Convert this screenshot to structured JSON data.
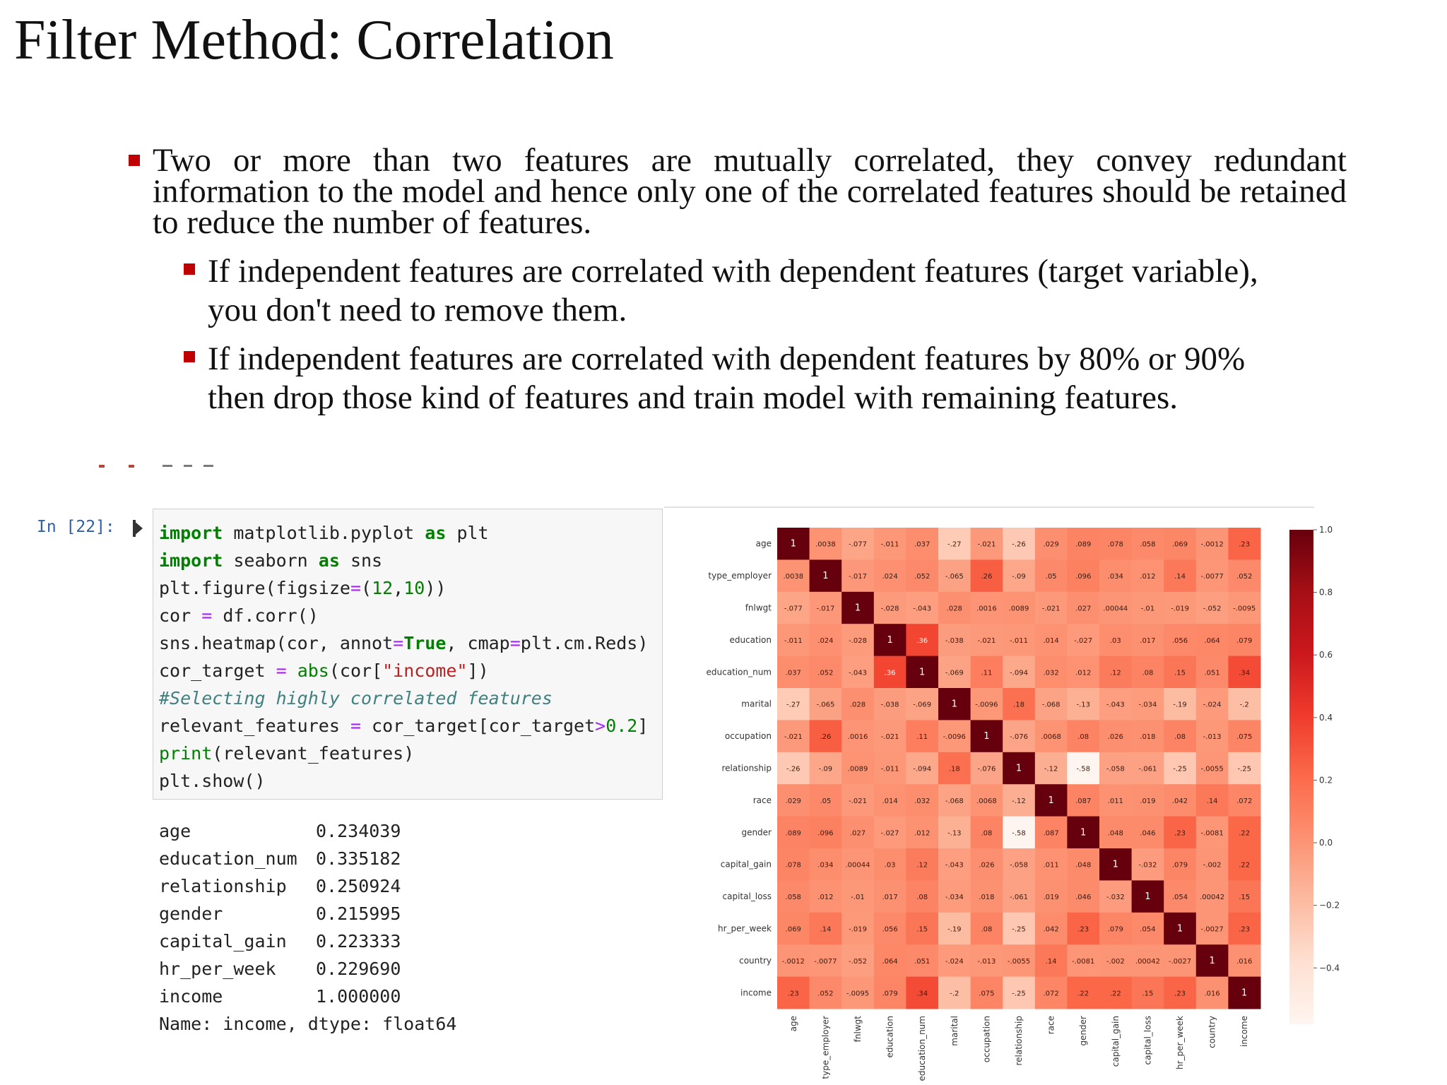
{
  "title": "Filter Method: Correlation",
  "bullets": [
    {
      "level": 1,
      "text": "Two or more than two features are mutually correlated, they convey redundant information to the model and hence only one of the correlated features should be retained to reduce the number of features."
    },
    {
      "level": 2,
      "text": "If independent features are correlated with dependent features (target variable), you don't need to remove them."
    },
    {
      "level": 2,
      "text": "If independent features are correlated with dependent features by 80% or 90% then drop those kind of features and train model with remaining features."
    }
  ],
  "notebook": {
    "prompt": "In [22]:",
    "code_lines": [
      [
        {
          "t": "import",
          "c": "kw"
        },
        {
          "t": " matplotlib.pyplot ",
          "c": ""
        },
        {
          "t": "as",
          "c": "kw"
        },
        {
          "t": " plt",
          "c": ""
        }
      ],
      [
        {
          "t": "import",
          "c": "kw"
        },
        {
          "t": " seaborn ",
          "c": ""
        },
        {
          "t": "as",
          "c": "kw"
        },
        {
          "t": " sns",
          "c": ""
        }
      ],
      [
        {
          "t": "plt.figure(figsize",
          "c": ""
        },
        {
          "t": "=",
          "c": "op"
        },
        {
          "t": "(",
          "c": ""
        },
        {
          "t": "12",
          "c": "num"
        },
        {
          "t": ",",
          "c": ""
        },
        {
          "t": "10",
          "c": "num"
        },
        {
          "t": "))",
          "c": ""
        }
      ],
      [
        {
          "t": "cor ",
          "c": ""
        },
        {
          "t": "=",
          "c": "op"
        },
        {
          "t": " df.corr()",
          "c": ""
        }
      ],
      [
        {
          "t": "sns.heatmap(cor, annot",
          "c": ""
        },
        {
          "t": "=",
          "c": "op"
        },
        {
          "t": "True",
          "c": "kw"
        },
        {
          "t": ", cmap",
          "c": ""
        },
        {
          "t": "=",
          "c": "op"
        },
        {
          "t": "plt.cm.Reds)",
          "c": ""
        }
      ],
      [
        {
          "t": "cor_target ",
          "c": ""
        },
        {
          "t": "=",
          "c": "op"
        },
        {
          "t": " ",
          "c": ""
        },
        {
          "t": "abs",
          "c": "bi"
        },
        {
          "t": "(cor[",
          "c": ""
        },
        {
          "t": "\"income\"",
          "c": "str"
        },
        {
          "t": "])",
          "c": ""
        }
      ],
      [
        {
          "t": "#Selecting highly correlated features",
          "c": "cm"
        }
      ],
      [
        {
          "t": "relevant_features ",
          "c": ""
        },
        {
          "t": "=",
          "c": "op"
        },
        {
          "t": " cor_target[cor_target",
          "c": ""
        },
        {
          "t": ">",
          "c": "op"
        },
        {
          "t": "0.2",
          "c": "num"
        },
        {
          "t": "]",
          "c": ""
        }
      ],
      [
        {
          "t": "print",
          "c": "bi"
        },
        {
          "t": "(relevant_features)",
          "c": ""
        }
      ],
      [
        {
          "t": "plt.show()",
          "c": ""
        }
      ]
    ],
    "output_rows": [
      {
        "name": "age",
        "value": "0.234039"
      },
      {
        "name": "education_num",
        "value": "0.335182"
      },
      {
        "name": "relationship",
        "value": "0.250924"
      },
      {
        "name": "gender",
        "value": "0.215995"
      },
      {
        "name": "capital_gain",
        "value": "0.223333"
      },
      {
        "name": "hr_per_week",
        "value": "0.229690"
      },
      {
        "name": "income",
        "value": "1.000000"
      }
    ],
    "output_footer": "Name: income, dtype: float64"
  },
  "chart_data": {
    "type": "heatmap",
    "labels": [
      "age",
      "type_employer",
      "fnlwgt",
      "education",
      "education_num",
      "marital",
      "occupation",
      "relationship",
      "race",
      "gender",
      "capital_gain",
      "capital_loss",
      "hr_per_week",
      "country",
      "income"
    ],
    "values": [
      [
        1,
        0.0038,
        -0.077,
        -0.011,
        0.037,
        -0.27,
        -0.021,
        -0.26,
        0.029,
        0.089,
        0.078,
        0.058,
        0.069,
        -0.0012,
        0.23
      ],
      [
        0.0038,
        1,
        -0.017,
        0.024,
        0.052,
        -0.065,
        0.26,
        -0.09,
        0.05,
        0.096,
        0.034,
        0.012,
        0.14,
        -0.0077,
        0.052
      ],
      [
        -0.077,
        -0.017,
        1,
        -0.028,
        -0.043,
        0.028,
        0.0016,
        0.0089,
        -0.021,
        0.027,
        0.00044,
        -0.01,
        -0.019,
        -0.052,
        -0.0095
      ],
      [
        -0.011,
        0.024,
        -0.028,
        1,
        0.36,
        -0.038,
        -0.021,
        -0.011,
        0.014,
        -0.027,
        0.03,
        0.017,
        0.056,
        0.064,
        0.079
      ],
      [
        0.037,
        0.052,
        -0.043,
        0.36,
        1,
        -0.069,
        0.11,
        -0.094,
        0.032,
        0.012,
        0.12,
        0.08,
        0.15,
        0.051,
        0.34
      ],
      [
        -0.27,
        -0.065,
        0.028,
        -0.038,
        -0.069,
        1,
        -0.0096,
        0.18,
        -0.068,
        -0.13,
        -0.043,
        -0.034,
        -0.19,
        -0.024,
        -0.2
      ],
      [
        -0.021,
        0.26,
        0.0016,
        -0.021,
        0.11,
        -0.0096,
        1,
        -0.076,
        0.0068,
        0.08,
        0.026,
        0.018,
        0.08,
        -0.013,
        0.075
      ],
      [
        -0.26,
        -0.09,
        0.0089,
        -0.011,
        -0.094,
        0.18,
        -0.076,
        1,
        -0.12,
        -0.58,
        -0.058,
        -0.061,
        -0.25,
        -0.0055,
        -0.25
      ],
      [
        0.029,
        0.05,
        -0.021,
        0.014,
        0.032,
        -0.068,
        0.0068,
        -0.12,
        1,
        0.087,
        0.011,
        0.019,
        0.042,
        0.14,
        0.072
      ],
      [
        0.089,
        0.096,
        0.027,
        -0.027,
        0.012,
        -0.13,
        0.08,
        -0.58,
        0.087,
        1,
        0.048,
        0.046,
        0.23,
        -0.0081,
        0.22
      ],
      [
        0.078,
        0.034,
        0.00044,
        0.03,
        0.12,
        -0.043,
        0.026,
        -0.058,
        0.011,
        0.048,
        1,
        -0.032,
        0.079,
        -0.002,
        0.22
      ],
      [
        0.058,
        0.012,
        -0.01,
        0.017,
        0.08,
        -0.034,
        0.018,
        -0.061,
        0.019,
        0.046,
        -0.032,
        1,
        0.054,
        0.00042,
        0.15
      ],
      [
        0.069,
        0.14,
        -0.019,
        0.056,
        0.15,
        -0.19,
        0.08,
        -0.25,
        0.042,
        0.23,
        0.079,
        0.054,
        1,
        -0.0027,
        0.23
      ],
      [
        -0.0012,
        -0.0077,
        -0.052,
        0.064,
        0.051,
        -0.024,
        -0.013,
        -0.0055,
        0.14,
        -0.0081,
        -0.002,
        0.00042,
        -0.0027,
        1,
        0.016
      ],
      [
        0.23,
        0.052,
        -0.0095,
        0.079,
        0.34,
        -0.2,
        0.075,
        -0.25,
        0.072,
        0.22,
        0.22,
        0.15,
        0.23,
        0.016,
        1
      ]
    ],
    "colorbar_ticks": [
      "1.0",
      "0.8",
      "0.6",
      "0.4",
      "0.2",
      "0.0",
      "−0.2",
      "−0.4"
    ],
    "vmin": -0.58,
    "vmax": 1.0,
    "colormap": "Reds",
    "colors": {
      "low": "#fff5f0",
      "high": "#67000d"
    }
  }
}
